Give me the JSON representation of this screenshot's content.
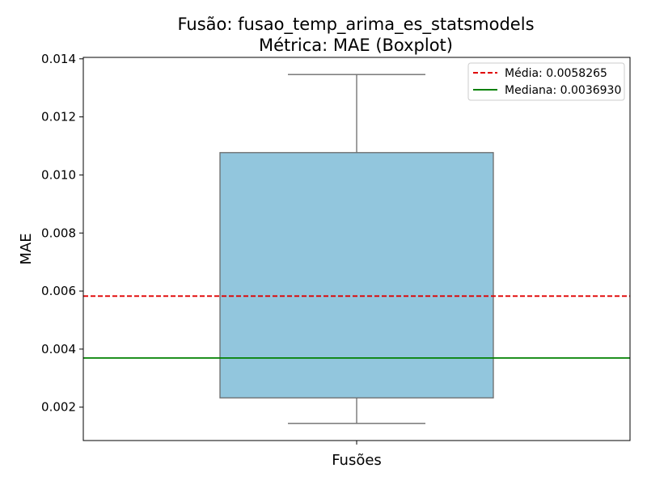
{
  "chart_data": {
    "type": "box",
    "title": "Fusão: fusao_temp_arima_es_statsmodels",
    "subtitle": "Métrica: MAE (Boxplot)",
    "xlabel": "Fusões",
    "ylabel": "MAE",
    "ylim": [
      0.00085,
      0.01405
    ],
    "yticks": [
      "0.002",
      "0.004",
      "0.006",
      "0.008",
      "0.010",
      "0.012",
      "0.014"
    ],
    "ytick_values": [
      0.002,
      0.004,
      0.006,
      0.008,
      0.01,
      0.012,
      0.014
    ],
    "grid": false,
    "legend_position": "top-right",
    "box": {
      "whisker_low": 0.00144,
      "q1": 0.00232,
      "median": 0.003693,
      "q3": 0.01077,
      "whisker_high": 0.01346,
      "fill": "#92c6dd",
      "edge": "#6b6b6b"
    },
    "reference_lines": [
      {
        "label": "Média: 0.0058265",
        "value": 0.0058265,
        "color": "#e00000",
        "style": "dashed"
      },
      {
        "label": "Mediana: 0.0036930",
        "value": 0.003693,
        "color": "#008000",
        "style": "solid"
      }
    ]
  }
}
